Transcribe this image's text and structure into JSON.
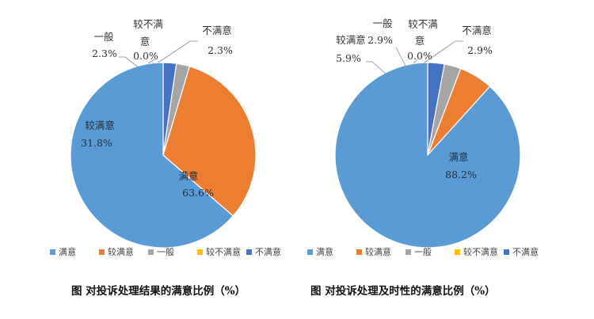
{
  "chart_data": [
    {
      "type": "pie",
      "title": "图  对投诉处理结果的满意比例（%）",
      "categories": [
        "满意",
        "较满意",
        "一般",
        "较不满意",
        "不满意"
      ],
      "values": [
        63.6,
        31.8,
        2.3,
        0.0,
        2.3
      ],
      "value_labels": [
        "63.6%",
        "31.8%",
        "2.3%",
        "0.0%",
        "2.3%"
      ],
      "colors": [
        "#5b9bd5",
        "#ed7d31",
        "#a5a5a5",
        "#ffc000",
        "#4472c4"
      ],
      "legend": "bottom"
    },
    {
      "type": "pie",
      "title": "图  对投诉处理及时性的满意比例（%）",
      "categories": [
        "满意",
        "较满意",
        "一般",
        "较不满意",
        "不满意"
      ],
      "values": [
        88.2,
        5.9,
        2.9,
        0.0,
        2.9
      ],
      "value_labels": [
        "88.2%",
        "5.9%",
        "2.9%",
        "0.0%",
        "2.9%"
      ],
      "colors": [
        "#5b9bd5",
        "#ed7d31",
        "#a5a5a5",
        "#ffc000",
        "#4472c4"
      ],
      "legend": "bottom"
    }
  ]
}
